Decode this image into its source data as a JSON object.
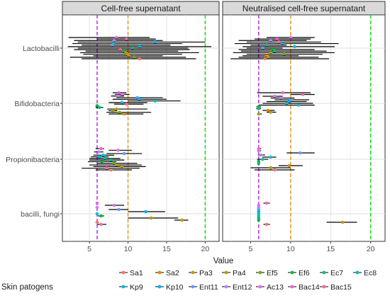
{
  "chart_data": {
    "type": "scatter",
    "xlabel": "Value",
    "ylabel": "",
    "xlim": [
      1.5,
      21.8
    ],
    "x_ticks": [
      5,
      10,
      15,
      20
    ],
    "categories": [
      "Lactobacilli",
      "Bifidobacteria",
      "Propionibacteria",
      "bacilli, fungi"
    ],
    "panels": [
      "Cell-free supernatant",
      "Neutralised cell-free supernatant"
    ],
    "reference_lines": [
      {
        "x": 6,
        "color": "#B23AEE"
      },
      {
        "x": 10,
        "color": "#E6A02A"
      },
      {
        "x": 20,
        "color": "#22DD22"
      }
    ],
    "legend": {
      "title": "Skin patogens",
      "position": "bottom",
      "entries": [
        {
          "name": "Sa1",
          "color": "#F8766D"
        },
        {
          "name": "Sa2",
          "color": "#E58700"
        },
        {
          "name": "Pa3",
          "color": "#C99800"
        },
        {
          "name": "Pa4",
          "color": "#A3A500"
        },
        {
          "name": "Ef5",
          "color": "#6BB100"
        },
        {
          "name": "Ef6",
          "color": "#00BA38"
        },
        {
          "name": "Ec7",
          "color": "#00BF7D"
        },
        {
          "name": "Ec8",
          "color": "#00C0AF"
        },
        {
          "name": "Kp9",
          "color": "#00BCD8"
        },
        {
          "name": "Kp10",
          "color": "#00B0F6"
        },
        {
          "name": "Ent11",
          "color": "#619CFF"
        },
        {
          "name": "Ent12",
          "color": "#B983FF"
        },
        {
          "name": "Ac13",
          "color": "#E76BF3"
        },
        {
          "name": "Bac14",
          "color": "#FD61D1"
        },
        {
          "name": "Bac15",
          "color": "#FF67A4"
        }
      ]
    },
    "series": [
      {
        "panel": 0,
        "category": 0,
        "points": [
          {
            "x": 8.5,
            "lo": 2.3,
            "hi": 12.8,
            "c": 12
          },
          {
            "x": 9.8,
            "lo": 6.0,
            "hi": 13.6,
            "c": 13
          },
          {
            "x": 8.2,
            "lo": 3.0,
            "hi": 14.5,
            "c": 11
          },
          {
            "x": 13.5,
            "lo": 3.5,
            "hi": 20.0,
            "c": 9
          },
          {
            "x": 8.1,
            "lo": 2.8,
            "hi": 17.0,
            "c": 7
          },
          {
            "x": 8.0,
            "lo": 4.0,
            "hi": 15.5,
            "c": 10
          },
          {
            "x": 11.5,
            "lo": 2.2,
            "hi": 20.8,
            "c": 8
          },
          {
            "x": 10.6,
            "lo": 3.5,
            "hi": 17.8,
            "c": 6
          },
          {
            "x": 9.0,
            "lo": 3.0,
            "hi": 18.0,
            "c": 14
          },
          {
            "x": 9.5,
            "lo": 4.5,
            "hi": 16.5,
            "c": 5
          },
          {
            "x": 9.7,
            "lo": 3.8,
            "hi": 19.2,
            "c": 3
          },
          {
            "x": 9.9,
            "lo": 4.2,
            "hi": 17.0,
            "c": 2
          },
          {
            "x": 10.1,
            "lo": 5.5,
            "hi": 14.5,
            "c": 1
          },
          {
            "x": 10.8,
            "lo": 2.5,
            "hi": 17.5,
            "c": 4
          },
          {
            "x": 11.5,
            "lo": 4.0,
            "hi": 18.8,
            "c": 0
          }
        ]
      },
      {
        "panel": 0,
        "category": 1,
        "points": [
          {
            "x": 8.8,
            "lo": 8.0,
            "hi": 9.8,
            "c": 13
          },
          {
            "x": 9.3,
            "lo": 8.3,
            "hi": 10.2,
            "c": 12
          },
          {
            "x": 8.7,
            "lo": 7.8,
            "hi": 9.5,
            "c": 11
          },
          {
            "x": 11.2,
            "lo": 8.5,
            "hi": 14.5,
            "c": 10
          },
          {
            "x": 11.5,
            "lo": 8.0,
            "hi": 15.0,
            "c": 9
          },
          {
            "x": 13.5,
            "lo": 10.0,
            "hi": 16.8,
            "c": 7
          },
          {
            "x": 9.2,
            "lo": 7.5,
            "hi": 12.5,
            "c": 8
          },
          {
            "x": 9.8,
            "lo": 8.2,
            "hi": 12.0,
            "c": 14
          },
          {
            "x": 6.0,
            "lo": 5.8,
            "hi": 6.2,
            "c": 5
          },
          {
            "x": 6.3,
            "lo": 5.8,
            "hi": 6.8,
            "c": 6
          },
          {
            "x": 8.5,
            "lo": 7.3,
            "hi": 12.5,
            "c": 2
          },
          {
            "x": 8.0,
            "lo": 7.5,
            "hi": 8.6,
            "c": 3
          },
          {
            "x": 8.9,
            "lo": 7.2,
            "hi": 13.0,
            "c": 4
          },
          {
            "x": 9.5,
            "lo": 7.5,
            "hi": 12.0,
            "c": 1
          }
        ]
      },
      {
        "panel": 0,
        "category": 2,
        "points": [
          {
            "x": 6.5,
            "lo": 5.8,
            "hi": 6.9,
            "c": 13
          },
          {
            "x": 8.7,
            "lo": 7.5,
            "hi": 10.5,
            "c": 12
          },
          {
            "x": 6.2,
            "lo": 5.6,
            "hi": 6.8,
            "c": 11
          },
          {
            "x": 9.5,
            "lo": 7.2,
            "hi": 11.8,
            "c": 10
          },
          {
            "x": 6.8,
            "lo": 5.5,
            "hi": 8.2,
            "c": 8
          },
          {
            "x": 6.3,
            "lo": 5.2,
            "hi": 7.5,
            "c": 9
          },
          {
            "x": 7.0,
            "lo": 5.0,
            "hi": 9.0,
            "c": 7
          },
          {
            "x": 7.8,
            "lo": 5.0,
            "hi": 9.5,
            "c": 6
          },
          {
            "x": 6.6,
            "lo": 4.8,
            "hi": 8.5,
            "c": 5
          },
          {
            "x": 8.2,
            "lo": 6.0,
            "hi": 11.2,
            "c": 4
          },
          {
            "x": 8.5,
            "lo": 5.0,
            "hi": 11.8,
            "c": 3
          },
          {
            "x": 9.2,
            "lo": 5.5,
            "hi": 12.3,
            "c": 2
          },
          {
            "x": 7.2,
            "lo": 4.0,
            "hi": 11.5,
            "c": 14
          },
          {
            "x": 7.8,
            "lo": 5.8,
            "hi": 10.5,
            "c": 0
          }
        ]
      },
      {
        "panel": 0,
        "category": 3,
        "points": [
          {
            "x": 6.0,
            "lo": 5.9,
            "hi": 6.1,
            "c": 13
          },
          {
            "x": 8.2,
            "lo": 7.0,
            "hi": 9.5,
            "c": 12
          },
          {
            "x": 6.0,
            "lo": 5.9,
            "hi": 6.1,
            "c": 11
          },
          {
            "x": 8.8,
            "lo": 7.5,
            "hi": 10.0,
            "c": 10
          },
          {
            "x": 12.3,
            "lo": 10.0,
            "hi": 14.8,
            "c": 9
          },
          {
            "x": 6.0,
            "lo": 5.9,
            "hi": 6.1,
            "c": 8
          },
          {
            "x": 6.5,
            "lo": 6.1,
            "hi": 6.9,
            "c": 5
          },
          {
            "x": 13.0,
            "lo": 10.0,
            "hi": 16.5,
            "c": 3
          },
          {
            "x": 17.0,
            "lo": 16.0,
            "hi": 17.8,
            "c": 1
          },
          {
            "x": 6.0,
            "lo": 5.8,
            "hi": 6.2,
            "c": 0
          },
          {
            "x": 6.5,
            "lo": 6.0,
            "hi": 7.2,
            "c": 14
          }
        ]
      },
      {
        "panel": 1,
        "category": 0,
        "points": [
          {
            "x": 10.0,
            "lo": 7.0,
            "hi": 13.0,
            "c": 12
          },
          {
            "x": 8.3,
            "lo": 5.5,
            "hi": 12.5,
            "c": 13
          },
          {
            "x": 7.5,
            "lo": 3.5,
            "hi": 12.0,
            "c": 11
          },
          {
            "x": 8.5,
            "lo": 4.5,
            "hi": 13.8,
            "c": 14
          },
          {
            "x": 9.0,
            "lo": 3.0,
            "hi": 16.0,
            "c": 9
          },
          {
            "x": 7.0,
            "lo": 5.0,
            "hi": 9.5,
            "c": 7
          },
          {
            "x": 10.5,
            "lo": 4.0,
            "hi": 15.5,
            "c": 8
          },
          {
            "x": 6.5,
            "lo": 4.5,
            "hi": 9.0,
            "c": 10
          },
          {
            "x": 7.8,
            "lo": 3.5,
            "hi": 13.0,
            "c": 5
          },
          {
            "x": 8.0,
            "lo": 3.8,
            "hi": 14.5,
            "c": 6
          },
          {
            "x": 7.5,
            "lo": 2.8,
            "hi": 15.5,
            "c": 3
          },
          {
            "x": 9.2,
            "lo": 4.5,
            "hi": 14.0,
            "c": 4
          },
          {
            "x": 7.0,
            "lo": 4.0,
            "hi": 11.0,
            "c": 1
          },
          {
            "x": 7.2,
            "lo": 3.5,
            "hi": 13.5,
            "c": 2
          },
          {
            "x": 6.8,
            "lo": 2.5,
            "hi": 14.8,
            "c": 0
          }
        ]
      },
      {
        "panel": 1,
        "category": 1,
        "points": [
          {
            "x": 9.0,
            "lo": 5.8,
            "hi": 12.5,
            "c": 13
          },
          {
            "x": 11.5,
            "lo": 10.0,
            "hi": 13.0,
            "c": 14
          },
          {
            "x": 8.0,
            "lo": 6.5,
            "hi": 9.0,
            "c": 12
          },
          {
            "x": 8.8,
            "lo": 7.5,
            "hi": 10.5,
            "c": 11
          },
          {
            "x": 10.0,
            "lo": 8.0,
            "hi": 12.3,
            "c": 10
          },
          {
            "x": 9.8,
            "lo": 7.0,
            "hi": 12.0,
            "c": 9
          },
          {
            "x": 9.5,
            "lo": 6.5,
            "hi": 12.8,
            "c": 7
          },
          {
            "x": 11.0,
            "lo": 6.0,
            "hi": 13.0,
            "c": 8
          },
          {
            "x": 6.0,
            "lo": 5.7,
            "hi": 6.3,
            "c": 5
          },
          {
            "x": 6.0,
            "lo": 5.7,
            "hi": 6.3,
            "c": 6
          },
          {
            "x": 7.2,
            "lo": 6.5,
            "hi": 8.0,
            "c": 1
          },
          {
            "x": 7.5,
            "lo": 7.0,
            "hi": 8.2,
            "c": 2
          },
          {
            "x": 6.0,
            "lo": 5.8,
            "hi": 6.4,
            "c": 3
          }
        ]
      },
      {
        "panel": 1,
        "category": 2,
        "points": [
          {
            "x": 6.0,
            "lo": 5.8,
            "hi": 6.3,
            "c": 13
          },
          {
            "x": 6.0,
            "lo": 5.8,
            "hi": 6.3,
            "c": 12
          },
          {
            "x": 11.2,
            "lo": 9.5,
            "hi": 13.0,
            "c": 10
          },
          {
            "x": 6.3,
            "lo": 5.9,
            "hi": 6.8,
            "c": 11
          },
          {
            "x": 7.5,
            "lo": 6.5,
            "hi": 8.2,
            "c": 8
          },
          {
            "x": 6.5,
            "lo": 5.8,
            "hi": 7.2,
            "c": 7
          },
          {
            "x": 6.0,
            "lo": 5.8,
            "hi": 6.2,
            "c": 5
          },
          {
            "x": 6.0,
            "lo": 5.8,
            "hi": 6.2,
            "c": 6
          },
          {
            "x": 9.8,
            "lo": 8.5,
            "hi": 11.5,
            "c": 2
          },
          {
            "x": 7.5,
            "lo": 5.0,
            "hi": 10.0,
            "c": 3
          },
          {
            "x": 8.0,
            "lo": 5.5,
            "hi": 10.5,
            "c": 0
          }
        ]
      },
      {
        "panel": 1,
        "category": 3,
        "points": [
          {
            "x": 7.0,
            "lo": 6.6,
            "hi": 7.4,
            "c": 13
          },
          {
            "x": 6.0,
            "lo": 5.9,
            "hi": 6.1,
            "c": 12
          },
          {
            "x": 6.0,
            "lo": 5.9,
            "hi": 6.1,
            "c": 11
          },
          {
            "x": 6.0,
            "lo": 5.9,
            "hi": 6.1,
            "c": 10
          },
          {
            "x": 6.0,
            "lo": 5.9,
            "hi": 6.1,
            "c": 9
          },
          {
            "x": 6.0,
            "lo": 5.9,
            "hi": 6.1,
            "c": 8
          },
          {
            "x": 6.0,
            "lo": 5.9,
            "hi": 6.1,
            "c": 7
          },
          {
            "x": 6.0,
            "lo": 5.9,
            "hi": 6.1,
            "c": 6
          },
          {
            "x": 6.0,
            "lo": 5.9,
            "hi": 6.1,
            "c": 5
          },
          {
            "x": 16.5,
            "lo": 14.5,
            "hi": 18.3,
            "c": 2
          },
          {
            "x": 7.0,
            "lo": 6.6,
            "hi": 7.4,
            "c": 0
          }
        ]
      }
    ]
  }
}
